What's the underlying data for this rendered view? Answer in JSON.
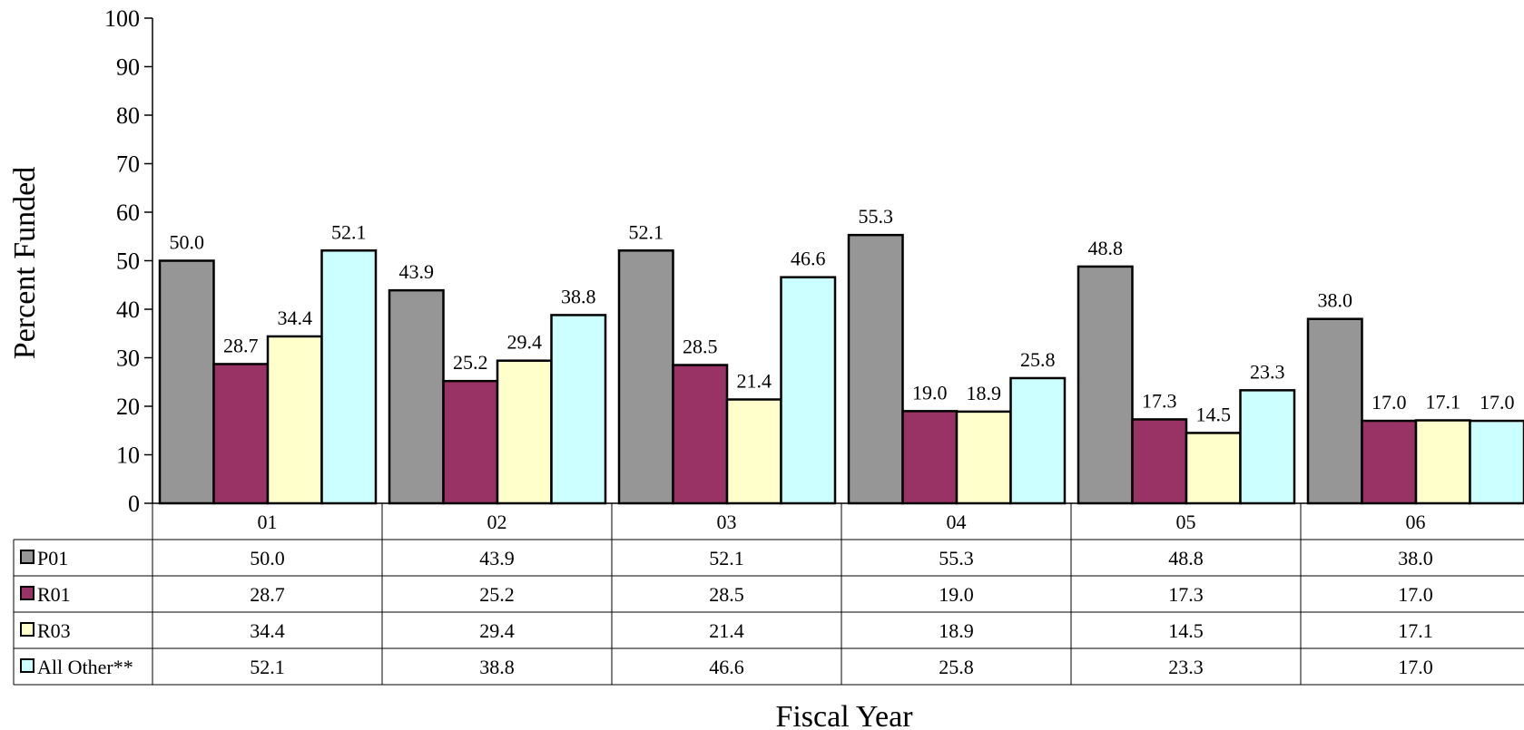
{
  "chart_data": {
    "type": "bar",
    "title": "",
    "xlabel": "Fiscal Year",
    "ylabel": "Percent Funded",
    "ylim": [
      0,
      100
    ],
    "yticks": [
      0,
      10,
      20,
      30,
      40,
      50,
      60,
      70,
      80,
      90,
      100
    ],
    "categories": [
      "01",
      "02",
      "03",
      "04",
      "05",
      "06"
    ],
    "series": [
      {
        "name": "P01",
        "color": "#969696",
        "values": [
          50.0,
          43.9,
          52.1,
          55.3,
          48.8,
          38.0
        ]
      },
      {
        "name": "R01",
        "color": "#993366",
        "values": [
          28.7,
          25.2,
          28.5,
          19.0,
          17.3,
          17.0
        ]
      },
      {
        "name": "R03",
        "color": "#FFFFCC",
        "values": [
          34.4,
          29.4,
          21.4,
          18.9,
          14.5,
          17.1
        ]
      },
      {
        "name": "All Other**",
        "color": "#CCFFFF",
        "values": [
          52.1,
          38.8,
          46.6,
          25.8,
          23.3,
          17.0
        ]
      }
    ],
    "grid": false,
    "legend": "data-table"
  }
}
